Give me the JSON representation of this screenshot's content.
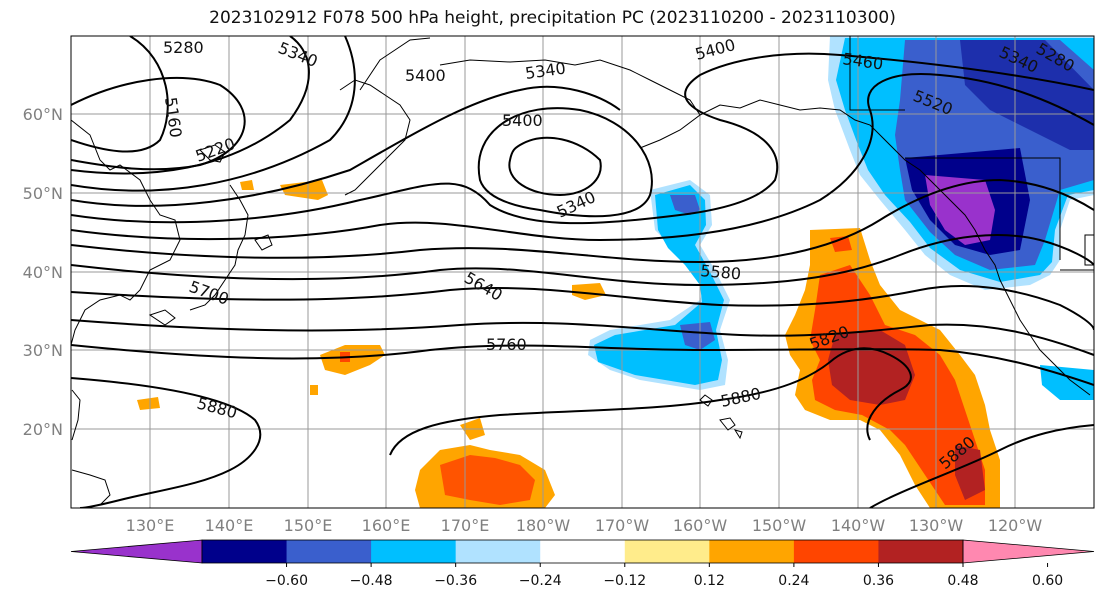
{
  "title": "2023102912 F078 500 hPa height, precipitation PC (2023110200 - 2023110300)",
  "map": {
    "lat_labels": [
      "60°N",
      "50°N",
      "40°N",
      "30°N",
      "20°N"
    ],
    "lon_labels": [
      "130°E",
      "140°E",
      "150°E",
      "160°E",
      "170°E",
      "180°W",
      "170°W",
      "160°W",
      "150°W",
      "140°W",
      "130°W",
      "120°W"
    ],
    "contour_labels": [
      "5280",
      "5340",
      "5400",
      "5340",
      "5400",
      "5160",
      "5220",
      "5400",
      "5340",
      "5460",
      "5340",
      "5280",
      "5520",
      "5580",
      "5640",
      "5700",
      "5760",
      "5820",
      "5880",
      "5880",
      "5880"
    ]
  },
  "colorbar": {
    "ticks": [
      "−0.60",
      "−0.48",
      "−0.36",
      "−0.24",
      "−0.12",
      "0.12",
      "0.24",
      "0.36",
      "0.48",
      "0.60"
    ],
    "colors": [
      "#9932cc",
      "#00008b",
      "#3a5fcd",
      "#00bfff",
      "#b0e2ff",
      "#ffffff",
      "#ffec8b",
      "#ffa500",
      "#ff4500",
      "#b22222",
      "#ff88b0"
    ]
  }
}
